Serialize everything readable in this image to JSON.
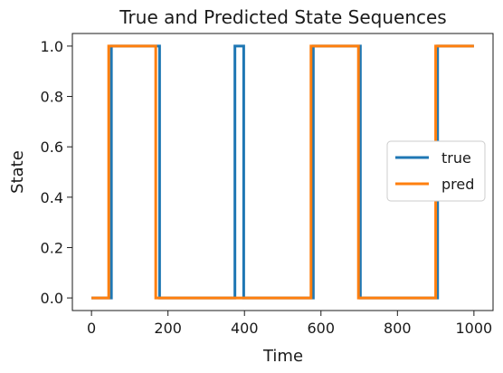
{
  "chart_data": {
    "type": "line",
    "title": "True and Predicted State Sequences",
    "xlabel": "Time",
    "ylabel": "State",
    "xlim": [
      -50,
      1050
    ],
    "ylim": [
      -0.05,
      1.05
    ],
    "x_ticks": [
      0,
      200,
      400,
      600,
      800,
      1000
    ],
    "y_ticks": [
      0.0,
      0.2,
      0.4,
      0.6,
      0.8,
      1.0
    ],
    "x_tick_labels": [
      "0",
      "200",
      "400",
      "600",
      "800",
      "1000"
    ],
    "y_tick_labels": [
      "0.0",
      "0.2",
      "0.4",
      "0.6",
      "0.8",
      "1.0"
    ],
    "grid": false,
    "legend_position": "center-right",
    "series": [
      {
        "name": "true",
        "color": "#1f77b4",
        "x": [
          0,
          52,
          52,
          178,
          178,
          375,
          375,
          398,
          398,
          580,
          580,
          703,
          703,
          905,
          905,
          1000
        ],
        "y": [
          0,
          0,
          1,
          1,
          0,
          0,
          1,
          1,
          0,
          0,
          1,
          1,
          0,
          0,
          1,
          1
        ]
      },
      {
        "name": "pred",
        "color": "#ff7f0e",
        "x": [
          0,
          45,
          45,
          168,
          168,
          574,
          574,
          698,
          698,
          900,
          900,
          1000
        ],
        "y": [
          0,
          0,
          1,
          1,
          0,
          0,
          1,
          1,
          0,
          0,
          1,
          1
        ]
      }
    ]
  }
}
